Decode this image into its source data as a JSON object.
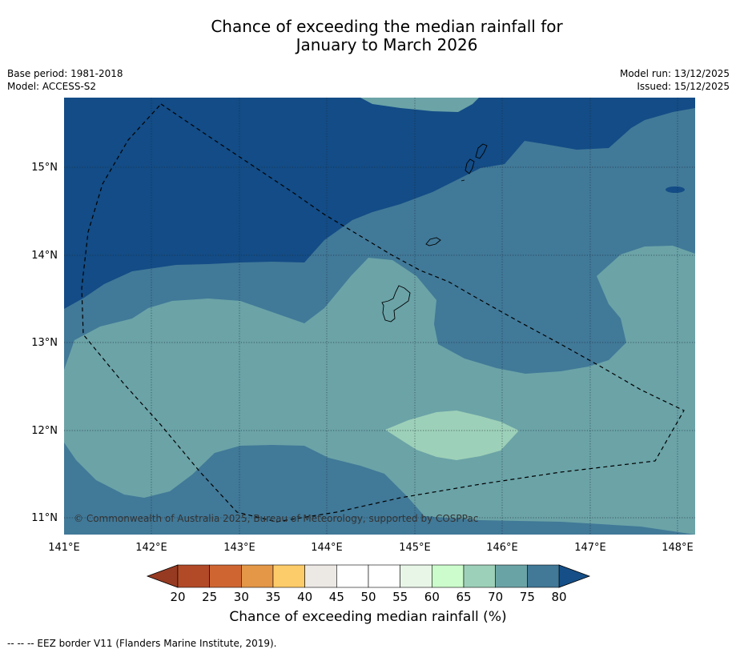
{
  "title_line1": "Chance of exceeding the median rainfall for",
  "title_line2": "January to March 2026",
  "base_period": "Base period: 1981-2018",
  "model": "Model: ACCESS-S2",
  "model_run": "Model run: 13/12/2025",
  "issued": "Issued: 15/12/2025",
  "copyright": "© Commonwealth of Australia 2025, Bureau of Meteorology, supported by COSPPac",
  "lat_labels": [
    "15°N",
    "14°N",
    "13°N",
    "12°N",
    "11°N"
  ],
  "lon_labels": [
    "141°E",
    "142°E",
    "143°E",
    "144°E",
    "145°E",
    "146°E",
    "147°E",
    "148°E"
  ],
  "colorbar": {
    "ticks": [
      "20",
      "25",
      "30",
      "35",
      "40",
      "45",
      "50",
      "55",
      "60",
      "65",
      "70",
      "75",
      "80"
    ],
    "colors": [
      "#b24a28",
      "#cf6632",
      "#e39747",
      "#fdcc6a",
      "#ece8e4",
      "#ffffff",
      "#ffffff",
      "#e8f6e8",
      "#ccfccc",
      "#9dd0b8",
      "#6aa3a6",
      "#417997"
    ],
    "under_color": "#963a22",
    "over_color": "#164f88",
    "label": "Chance of exceeding median rainfall (%)"
  },
  "map_colors": {
    "dark_blue": "#134c86",
    "mid_blue": "#417998",
    "teal": "#6ba3a7",
    "light_green": "#9dd0b8"
  },
  "footnote": "--  --  -- EEZ border V11 (Flanders Marine Institute, 2019)."
}
